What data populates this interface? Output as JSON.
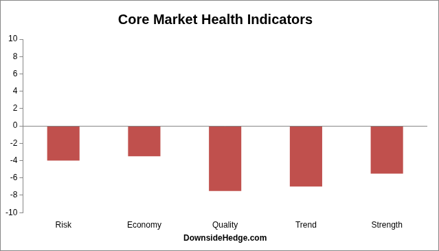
{
  "chart_data": {
    "type": "bar",
    "title": "Core Market Health Indicators",
    "xlabel": "DownsideHedge.com",
    "categories": [
      "Risk",
      "Economy",
      "Quality",
      "Trend",
      "Strength"
    ],
    "values": [
      -4,
      -3.5,
      -7.5,
      -7,
      -5.5
    ],
    "color": "#c0504d",
    "ylim": [
      -10,
      10
    ],
    "yticks": [
      -10,
      -8,
      -6,
      -4,
      -2,
      0,
      2,
      4,
      6,
      8,
      10
    ],
    "grid": false
  }
}
